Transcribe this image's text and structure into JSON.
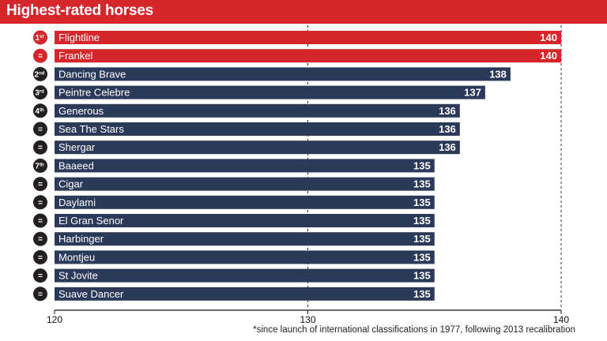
{
  "header": {
    "title": "Highest-rated horses"
  },
  "footnote": "*since launch of international classifications in 1977, following 2013 recalibration",
  "colors": {
    "highlight": "#d7262b",
    "bar": "#2c3a5a",
    "badge_dark": "#231f20",
    "text_on_bar": "#ffffff"
  },
  "chart_data": {
    "type": "bar",
    "orientation": "horizontal",
    "categories": [
      "Flightline",
      "Frankel",
      "Dancing Brave",
      "Peintre Celebre",
      "Generous",
      "Sea The Stars",
      "Shergar",
      "Baaeed",
      "Cigar",
      "Daylami",
      "El Gran Senor",
      "Harbinger",
      "Montjeu",
      "St Jovite",
      "Suave Dancer"
    ],
    "values": [
      140,
      140,
      138,
      137,
      136,
      136,
      136,
      135,
      135,
      135,
      135,
      135,
      135,
      135,
      135
    ],
    "ranks": [
      "1st",
      "=",
      "2nd",
      "3rd",
      "4th",
      "=",
      "=",
      "7th",
      "=",
      "=",
      "=",
      "=",
      "=",
      "=",
      "="
    ],
    "highlighted": [
      true,
      true,
      false,
      false,
      false,
      false,
      false,
      false,
      false,
      false,
      false,
      false,
      false,
      false,
      false
    ],
    "xlim": [
      120,
      140
    ],
    "xticks": [
      "120",
      "130",
      "140"
    ],
    "title": "",
    "xlabel": "",
    "ylabel": "",
    "grid": "dashed vertical lines at 130 and 140"
  }
}
